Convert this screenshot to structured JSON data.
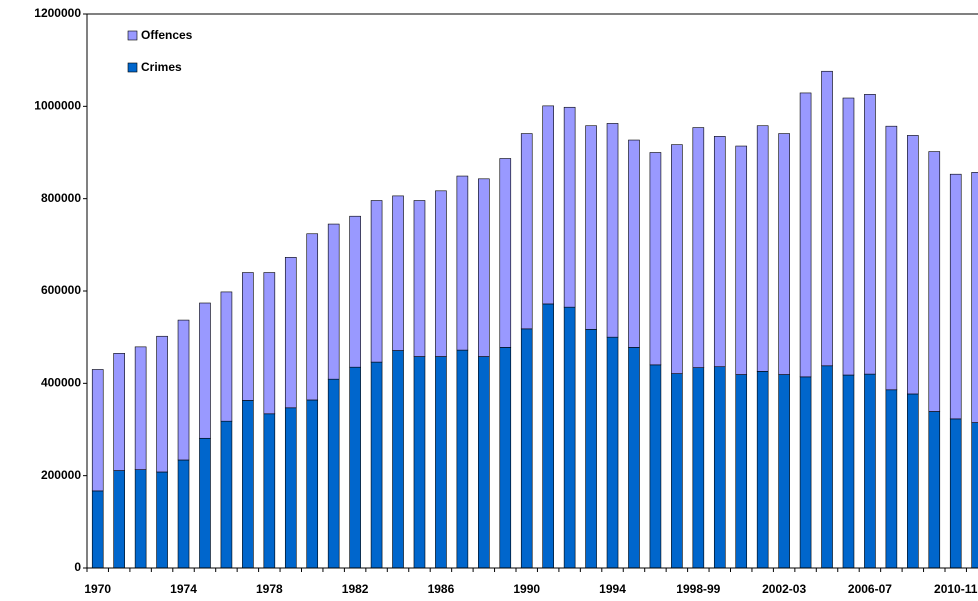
{
  "chart_data": {
    "type": "stacked_bar",
    "categories": [
      "1970",
      null,
      null,
      null,
      "1974",
      null,
      null,
      null,
      "1978",
      null,
      null,
      null,
      "1982",
      null,
      null,
      null,
      "1986",
      null,
      null,
      null,
      "1990",
      null,
      null,
      null,
      "1994",
      null,
      null,
      null,
      "1998-99",
      null,
      null,
      null,
      "2002-03",
      null,
      null,
      null,
      "2006-07",
      null,
      null,
      null,
      "2010-11",
      null
    ],
    "series": [
      {
        "name": "Crimes",
        "color": "#0066CC",
        "values": [
          167000,
          211000,
          213000,
          208000,
          234000,
          281000,
          318000,
          363000,
          334000,
          347000,
          364000,
          409000,
          435000,
          446000,
          471000,
          458000,
          458000,
          472000,
          458000,
          478000,
          518000,
          572000,
          565000,
          517000,
          500000,
          478000,
          440000,
          421000,
          434000,
          436000,
          419000,
          426000,
          419000,
          414000,
          438000,
          418000,
          420000,
          386000,
          377000,
          339000,
          323000,
          315000
        ]
      },
      {
        "name": "Offences",
        "color": "#9999FF",
        "values": [
          263000,
          254000,
          266000,
          294000,
          303000,
          293000,
          280000,
          277000,
          306000,
          326000,
          360000,
          336000,
          327000,
          350000,
          335000,
          338000,
          359000,
          377000,
          385000,
          409000,
          423000,
          429000,
          433000,
          441000,
          463000,
          449000,
          460000,
          496000,
          520000,
          499000,
          495000,
          532000,
          522000,
          615000,
          638000,
          600000,
          606000,
          571000,
          560000,
          563000,
          530000,
          542000
        ]
      }
    ],
    "ylim": [
      0,
      1200000
    ],
    "yticks": [
      0,
      200000,
      400000,
      600000,
      800000,
      1000000,
      1200000
    ],
    "legend": "upper left"
  }
}
